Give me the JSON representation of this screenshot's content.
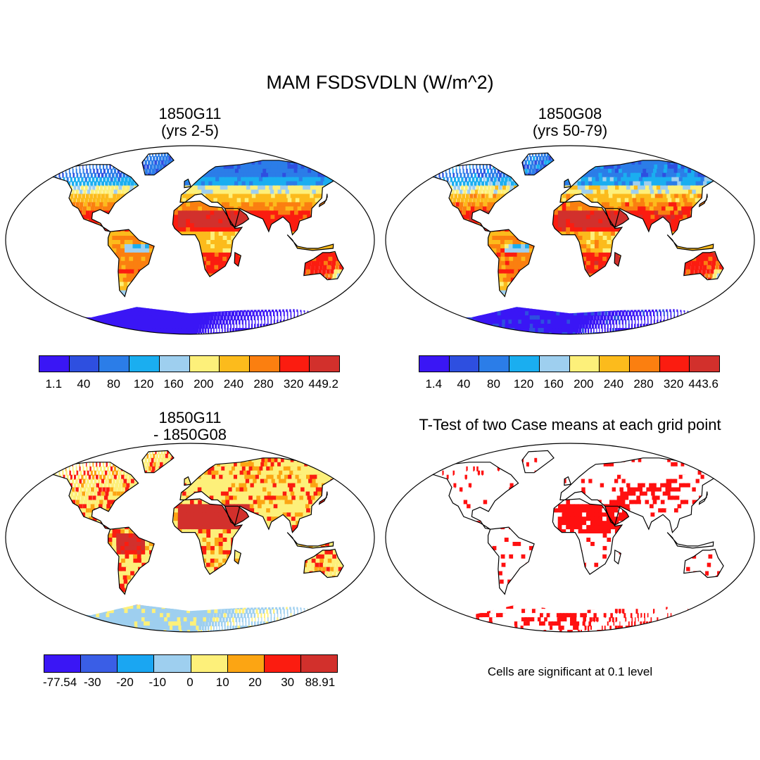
{
  "title": "MAM FSDSVDLN (W/m^2)",
  "colors": {
    "ocean": "#ffffff",
    "coast": "#000000",
    "abs_scale": [
      "#3a16f5",
      "#2e4fe0",
      "#2b7de8",
      "#1aaef0",
      "#9ecfef",
      "#fdf07a",
      "#fcbb1c",
      "#fb7f10",
      "#fb1c10",
      "#d2302c"
    ],
    "diff_scale": [
      "#3a16f5",
      "#3a5ee6",
      "#1aa6f2",
      "#9ecfef",
      "#fdf07a",
      "#fca513",
      "#fb1c10",
      "#d2302c"
    ],
    "signif": "#ff1010"
  },
  "panels": {
    "p1": {
      "title_line1": "1850G11",
      "title_line2": "(yrs 2-5)",
      "colorbar_labels": [
        "1.1",
        "40",
        "80",
        "120",
        "160",
        "200",
        "240",
        "280",
        "320",
        "449.2"
      ]
    },
    "p2": {
      "title_line1": "1850G08",
      "title_line2": "(yrs 50-79)",
      "colorbar_labels": [
        "1.4",
        "40",
        "80",
        "120",
        "160",
        "200",
        "240",
        "280",
        "320",
        "443.6"
      ]
    },
    "p3": {
      "title_line1": "1850G11",
      "title_line2": "- 1850G08",
      "colorbar_labels": [
        "-77.54",
        "-30",
        "-20",
        "-10",
        "0",
        "10",
        "20",
        "30",
        "88.91"
      ]
    },
    "p4": {
      "title_line1": "T-Test of two Case means at each grid point",
      "note": "Cells are significant at 0.1 level"
    }
  }
}
